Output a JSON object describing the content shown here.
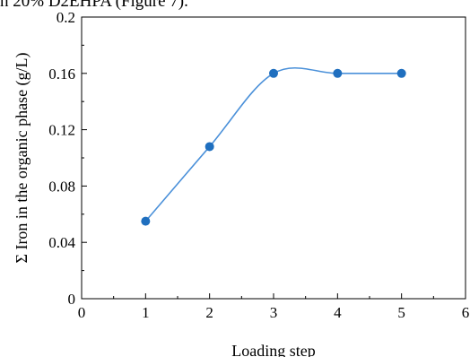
{
  "caption_fragment": "h 20% D2EHPA (Figure 7).",
  "chart_data": {
    "type": "line",
    "title": "",
    "xlabel": "Loading step",
    "ylabel": "Σ Iron in the organic phase (g/L)",
    "xlim": [
      0,
      6
    ],
    "ylim": [
      0,
      0.2
    ],
    "x_ticks": [
      "0",
      "1",
      "2",
      "3",
      "4",
      "5",
      "6"
    ],
    "y_ticks": [
      "0",
      "0.04",
      "0.08",
      "0.12",
      "0.16",
      "0.2"
    ],
    "smooth": true,
    "grid": false,
    "legend": "none",
    "series": [
      {
        "x": [
          1,
          2,
          3,
          4,
          5
        ],
        "values": [
          0.055,
          0.108,
          0.16,
          0.16,
          0.16
        ],
        "color": "#1f6fbf",
        "line_color": "#4a90d9"
      }
    ]
  }
}
